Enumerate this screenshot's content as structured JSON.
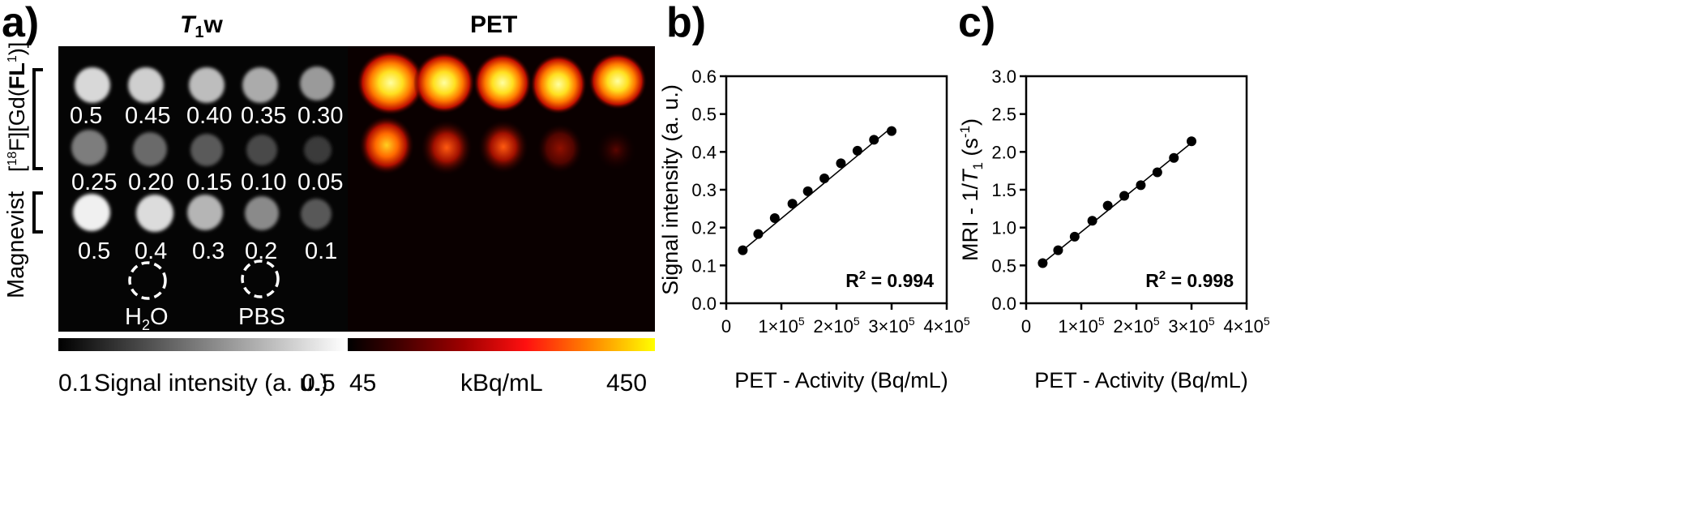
{
  "panel_a": {
    "label": "a)",
    "t1w_title_t": "T",
    "t1w_title_sub": "1",
    "t1w_title_w": "w",
    "pet_title": "PET",
    "left_labels": {
      "gd_fl": "[18F][Gd(FL1)]",
      "gd_fl_pre": "[",
      "gd_fl_sup18": "18",
      "gd_fl_mid": "F][Gd(",
      "gd_fl_bold": "FL",
      "gd_fl_sup1": "1",
      "gd_fl_post": ")]",
      "magnevist": "Magnevist"
    },
    "row1_labels": [
      "0.5",
      "0.45",
      "0.40",
      "0.35",
      "0.30"
    ],
    "row2_labels": [
      "0.25",
      "0.20",
      "0.15",
      "0.10",
      "0.05"
    ],
    "row3_labels": [
      "0.5",
      "0.4",
      "0.3",
      "0.2",
      "0.1"
    ],
    "control_labels": [
      "H2O",
      "PBS"
    ],
    "control_h2o_pre": "H",
    "control_h2o_sub": "2",
    "control_h2o_post": "O",
    "control_pbs": "PBS",
    "colorbar_gray": {
      "min_label": "0.1",
      "title": "Signal intensity (a. u.)",
      "max_label": "0.5"
    },
    "colorbar_heat": {
      "min_label": "45",
      "unit": "kBq/mL",
      "max_label": "450"
    },
    "colors": {
      "background_image": "#050505",
      "heat_low": "#1a0000",
      "heat_mid": "#d01010",
      "heat_high": "#ffff00"
    }
  },
  "chart_data": [
    {
      "panel_label": "b)",
      "type": "scatter",
      "xlabel": "PET - Activity (Bq/mL)",
      "ylabel": "Signal intensity (a. u.)",
      "xlim": [
        0,
        400000
      ],
      "ylim": [
        0,
        0.6
      ],
      "x_ticks": [
        "0",
        "1×105",
        "2×105",
        "3×105",
        "4×105"
      ],
      "y_ticks": [
        "0.0",
        "0.1",
        "0.2",
        "0.3",
        "0.4",
        "0.5",
        "0.6"
      ],
      "x": [
        30000,
        58000,
        88000,
        120000,
        148000,
        178000,
        208000,
        238000,
        268000,
        300000
      ],
      "y": [
        0.14,
        0.183,
        0.225,
        0.263,
        0.296,
        0.33,
        0.37,
        0.403,
        0.432,
        0.455
      ],
      "fit_line": {
        "x": [
          30000,
          302000
        ],
        "y": [
          0.14,
          0.467
        ]
      },
      "annotation": "R2 = 0.994",
      "grid": false
    },
    {
      "panel_label": "c)",
      "type": "scatter",
      "xlabel": "PET - Activity (Bq/mL)",
      "ylabel": "MRI - 1/T1 (s-1)",
      "xlim": [
        0,
        400000
      ],
      "ylim": [
        0,
        3.0
      ],
      "x_ticks": [
        "0",
        "1×105",
        "2×105",
        "3×105",
        "4×105"
      ],
      "y_ticks": [
        "0.0",
        "0.5",
        "1.0",
        "1.5",
        "2.0",
        "2.5",
        "3.0"
      ],
      "x": [
        30000,
        58000,
        88000,
        120000,
        148000,
        178000,
        208000,
        238000,
        268000,
        300000
      ],
      "y": [
        0.53,
        0.7,
        0.88,
        1.09,
        1.29,
        1.42,
        1.56,
        1.73,
        1.92,
        2.14
      ],
      "fit_line": {
        "x": [
          30000,
          300000
        ],
        "y": [
          0.53,
          2.12
        ]
      },
      "annotation": "R2 = 0.998",
      "grid": false
    }
  ]
}
